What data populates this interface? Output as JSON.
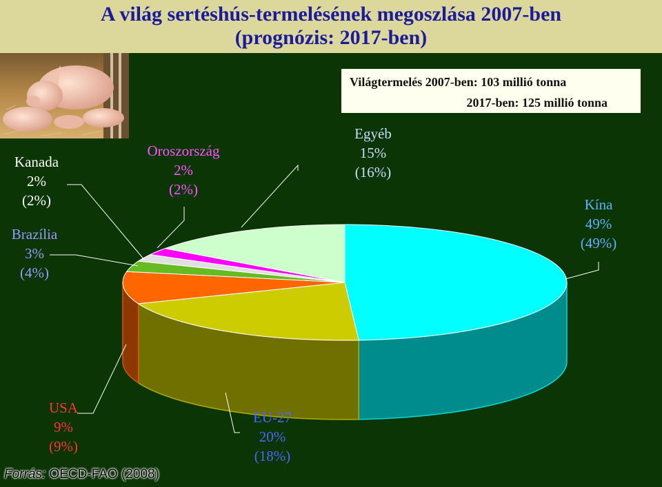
{
  "title": {
    "line1": "A világ sertéshús-termelésének megoszlása 2007-ben",
    "line2": "(prognózis: 2017-ben)"
  },
  "info": {
    "line1": "Világtermelés 2007-ben: 103 millió tonna",
    "line2": "2017-ben: 125 millió tonna"
  },
  "source": {
    "label": "Forrás:",
    "text": "OECD-FAO (2008)"
  },
  "chart_data": {
    "type": "pie",
    "title": "A világ sertéshús-termelésének megoszlása 2007-ben (prognózis: 2017-ben)",
    "slices": [
      {
        "name": "Kína",
        "value_2007": "49%",
        "value_2017": "(49%)",
        "value": 49,
        "color": "#00ffff"
      },
      {
        "name": "EU-27",
        "value_2007": "20%",
        "value_2017": "(18%)",
        "value": 20,
        "color": "#cccc00"
      },
      {
        "name": "USA",
        "value_2007": "9%",
        "value_2017": "(9%)",
        "value": 9,
        "color": "#ff6600"
      },
      {
        "name": "Brazília",
        "value_2007": "3%",
        "value_2017": "(4%)",
        "value": 3,
        "color": "#66bb22"
      },
      {
        "name": "Kanada",
        "value_2007": "2%",
        "value_2017": "(2%)",
        "value": 2,
        "color": "#e0e0e0"
      },
      {
        "name": "Oroszország",
        "value_2007": "2%",
        "value_2017": "(2%)",
        "value": 2,
        "color": "#ff00ff"
      },
      {
        "name": "Egyéb",
        "value_2007": "15%",
        "value_2017": "(16%)",
        "value": 15,
        "color": "#ccffcc"
      }
    ],
    "label_colors": {
      "Kína": "#5ab0ff",
      "EU-27": "#4d66ff",
      "USA": "#ff3333",
      "Brazília": "#9999ff",
      "Kanada": "#ffffff",
      "Oroszország": "#ff55ff",
      "Egyéb": "#ccddff"
    }
  }
}
